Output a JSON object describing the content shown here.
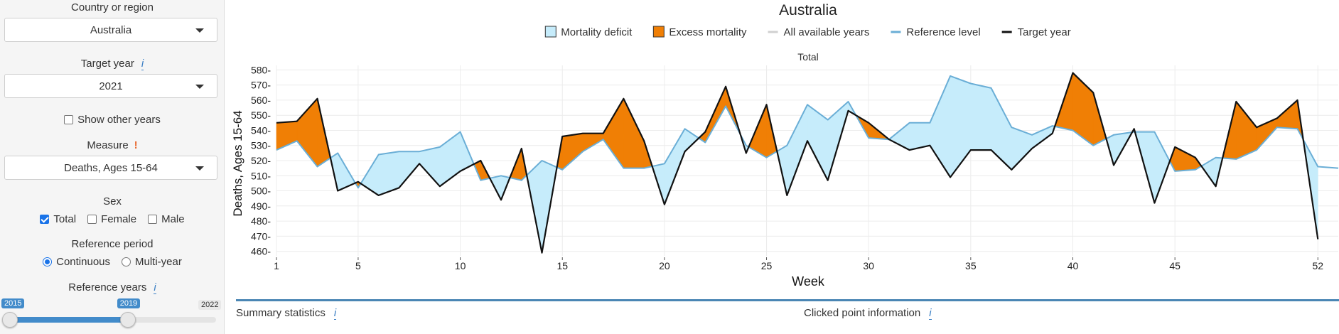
{
  "sidebar": {
    "country": {
      "label": "Country or region",
      "value": "Australia"
    },
    "target_year": {
      "label": "Target year",
      "info": "i",
      "value": "2021"
    },
    "show_other_years": {
      "label": "Show other years",
      "checked": false
    },
    "measure": {
      "label": "Measure",
      "warn": "!",
      "value": "Deaths, Ages 15-64"
    },
    "sex": {
      "label": "Sex",
      "options": [
        {
          "label": "Total",
          "checked": true
        },
        {
          "label": "Female",
          "checked": false
        },
        {
          "label": "Male",
          "checked": false
        }
      ]
    },
    "reference_period": {
      "label": "Reference period",
      "options": [
        {
          "label": "Continuous",
          "selected": true
        },
        {
          "label": "Multi-year",
          "selected": false
        }
      ]
    },
    "reference_years": {
      "label": "Reference years",
      "info": "i",
      "min": "2015",
      "max": "2022",
      "from": "2015",
      "to": "2019",
      "from_value": 2015,
      "to_value": 2019,
      "min_value": 2015,
      "max_value": 2022
    }
  },
  "chart_data": {
    "type": "area",
    "title": "Australia",
    "subtitle": "Total",
    "xlabel": "Week",
    "ylabel": "Deaths, Ages 15-64",
    "xlim": [
      1,
      53
    ],
    "ylim": [
      457,
      583
    ],
    "xticks": [
      1,
      5,
      10,
      15,
      20,
      25,
      30,
      35,
      40,
      45,
      52
    ],
    "yticks": [
      460,
      470,
      480,
      490,
      500,
      510,
      520,
      530,
      540,
      550,
      560,
      570,
      580
    ],
    "grid": true,
    "legend_position": "top",
    "legend": [
      {
        "name": "Mortality deficit",
        "kind": "box",
        "color": "#c6ecfb",
        "border": "#333333"
      },
      {
        "name": "Excess mortality",
        "kind": "box",
        "color": "#f07f05",
        "border": "#333333"
      },
      {
        "name": "All available years",
        "kind": "line",
        "color": "#d0d0d0"
      },
      {
        "name": "Reference level",
        "kind": "line",
        "color": "#6aaed6"
      },
      {
        "name": "Target year",
        "kind": "line",
        "color": "#111111"
      }
    ],
    "colors": {
      "deficit": "#c6ecfb",
      "excess": "#f07f05",
      "reference": "#6aaed6",
      "target": "#111111"
    },
    "weeks": [
      1,
      2,
      3,
      4,
      5,
      6,
      7,
      8,
      9,
      10,
      11,
      12,
      13,
      14,
      15,
      16,
      17,
      18,
      19,
      20,
      21,
      22,
      23,
      24,
      25,
      26,
      27,
      28,
      29,
      30,
      31,
      32,
      33,
      34,
      35,
      36,
      37,
      38,
      39,
      40,
      41,
      42,
      43,
      44,
      45,
      46,
      47,
      48,
      49,
      50,
      51,
      52,
      53
    ],
    "series": [
      {
        "name": "Reference level",
        "values": [
          527,
          533,
          516,
          525,
          502,
          524,
          526,
          526,
          529,
          539,
          507,
          510,
          507,
          520,
          514,
          526,
          534,
          515,
          515,
          518,
          541,
          532,
          556,
          530,
          522,
          530,
          557,
          547,
          559,
          535,
          534,
          545,
          545,
          576,
          571,
          568,
          542,
          537,
          543,
          540,
          530,
          537,
          539,
          539,
          513,
          514,
          522,
          521,
          527,
          542,
          541,
          516,
          515
        ]
      },
      {
        "name": "Target year",
        "values": [
          545,
          546,
          561,
          500,
          506,
          497,
          502,
          518,
          503,
          513,
          520,
          494,
          528,
          459,
          536,
          538,
          538,
          561,
          533,
          491,
          526,
          539,
          569,
          525,
          557,
          497,
          533,
          507,
          553,
          545,
          534,
          527,
          530,
          509,
          527,
          527,
          514,
          528,
          538,
          578,
          565,
          517,
          541,
          492,
          529,
          522,
          503,
          559,
          542,
          548,
          560,
          468,
          null
        ]
      }
    ]
  },
  "bottom": {
    "summary_label": "Summary statistics",
    "summary_info": "i",
    "clicked_label": "Clicked point information",
    "clicked_info": "i"
  }
}
